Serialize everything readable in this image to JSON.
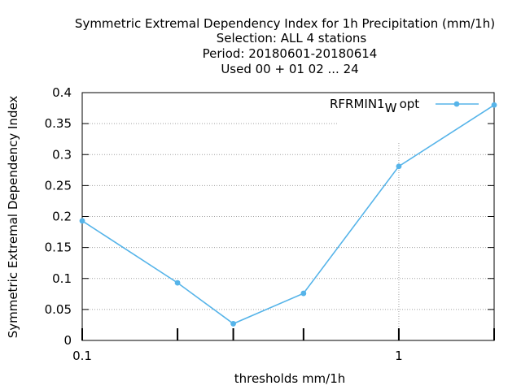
{
  "chart_data": {
    "type": "line",
    "title_lines": [
      "Symmetric Extremal Dependency Index  for 1h Precipitation (mm/1h)",
      "Selection: ALL      4 stations",
      "Period: 20180601-20180614",
      "Used  00 + 01 02 ... 24"
    ],
    "xlabel": "thresholds mm/1h",
    "ylabel": "Symmetric Extremal Dependency Index",
    "x_scale": "log",
    "xlim": [
      0.1,
      2
    ],
    "ylim": [
      0,
      0.4
    ],
    "x_ticks": [
      {
        "value": 0.1,
        "label": "0.1"
      },
      {
        "value": 0.2,
        "label": ""
      },
      {
        "value": 0.3,
        "label": ""
      },
      {
        "value": 0.5,
        "label": ""
      },
      {
        "value": 1,
        "label": "1"
      },
      {
        "value": 2,
        "label": ""
      }
    ],
    "y_ticks": [
      {
        "value": 0,
        "label": "0"
      },
      {
        "value": 0.05,
        "label": "0.05"
      },
      {
        "value": 0.1,
        "label": "0.1"
      },
      {
        "value": 0.15,
        "label": "0.15"
      },
      {
        "value": 0.2,
        "label": "0.2"
      },
      {
        "value": 0.25,
        "label": "0.25"
      },
      {
        "value": 0.3,
        "label": "0.3"
      },
      {
        "value": 0.35,
        "label": "0.35"
      },
      {
        "value": 0.4,
        "label": "0.4"
      }
    ],
    "grid": "dotted",
    "legend_position": "top-right",
    "series": [
      {
        "name": "RFRMIN1",
        "name_subscript": "W",
        "name_suffix": "opt",
        "color": "#56b4e9",
        "x": [
          0.1,
          0.2,
          0.3,
          0.5,
          1,
          2
        ],
        "y": [
          0.193,
          0.093,
          0.027,
          0.076,
          0.281,
          0.38
        ]
      }
    ]
  }
}
